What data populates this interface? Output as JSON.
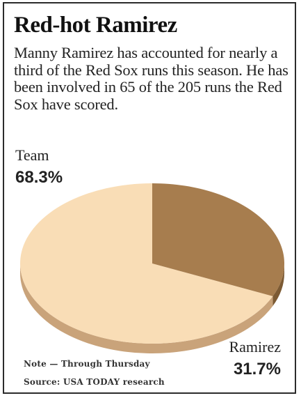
{
  "header": {
    "title": "Red-hot Ramirez",
    "subtitle": "Manny Ramirez has accounted for nearly a third of the Red Sox runs this season. He has been involved in 65 of the 205 runs the Red Sox have scored."
  },
  "footer": {
    "note": "Note — Through Thursday",
    "source": "Source: USA TODAY research"
  },
  "chart_data": {
    "type": "pie",
    "title": "Red-hot Ramirez",
    "slices": [
      {
        "label": "Team",
        "value": 68.3,
        "display": "68.3%",
        "color": "#f9ddb6",
        "side_color": "#c9a37a"
      },
      {
        "label": "Ramirez",
        "value": 31.7,
        "display": "31.7%",
        "color": "#a77d4e",
        "side_color": "#7c5a33"
      }
    ],
    "style": "3d-tilted",
    "legend": "none"
  }
}
